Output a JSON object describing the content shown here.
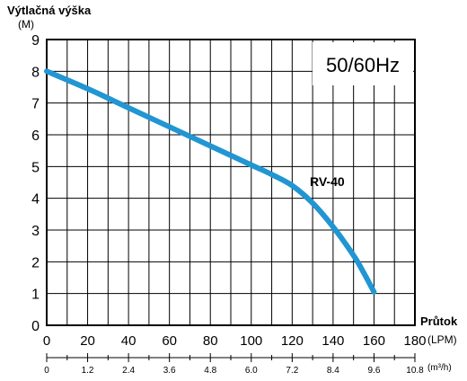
{
  "chart_data": {
    "type": "line",
    "y_title": "Výtlačná výška",
    "y_unit": "(M)",
    "x_title": "Průtok",
    "x_unit": "(LPM)",
    "x2_unit": "(m³/h)",
    "frequency_label": "50/60Hz",
    "series": [
      {
        "name": "RV-40",
        "color": "#2196d3",
        "x": [
          0,
          20,
          40,
          60,
          80,
          100,
          110,
          120,
          130,
          140,
          150,
          155,
          160
        ],
        "y": [
          8.0,
          7.45,
          6.85,
          6.25,
          5.65,
          5.05,
          4.75,
          4.4,
          3.85,
          3.1,
          2.2,
          1.65,
          1.05
        ]
      }
    ],
    "xlim": [
      0,
      180
    ],
    "ylim": [
      0,
      9
    ],
    "x_ticks": [
      "0",
      "20",
      "40",
      "60",
      "80",
      "100",
      "120",
      "140",
      "160",
      "180"
    ],
    "y_ticks": [
      "0",
      "1",
      "2",
      "3",
      "4",
      "5",
      "6",
      "7",
      "8",
      "9"
    ],
    "x2_ticks": [
      "0",
      "1.2",
      "2.4",
      "3.6",
      "4.8",
      "6.0",
      "7.2",
      "8.4",
      "9.6",
      "10.8"
    ],
    "grid": true
  }
}
